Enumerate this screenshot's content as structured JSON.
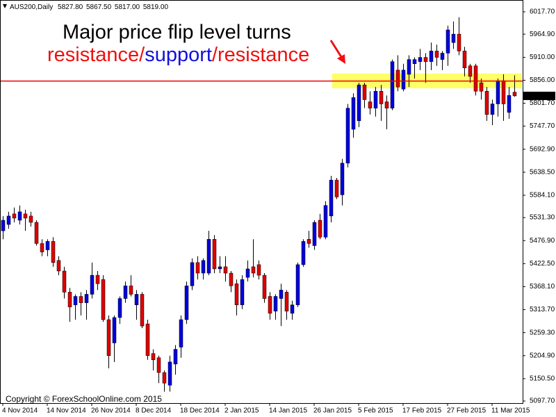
{
  "chart_data": {
    "type": "candlestick",
    "title": "AUS200,Daily",
    "quote": [
      "5827.80",
      "5867.50",
      "5817.00",
      "5819.00"
    ],
    "annotation": {
      "line1": {
        "text": "Major price flip level turns",
        "color": "#ee1111"
      },
      "line2": [
        {
          "text": "resistance/",
          "color": "#ee1111"
        },
        {
          "text": "support",
          "color": "#1111dd"
        },
        {
          "text": "/resistance",
          "color": "#ee1111"
        }
      ]
    },
    "copyright": "Copyright © ForexSchoolOnline.com 2015",
    "categories": [
      "4 Nov 2014",
      null,
      null,
      null,
      null,
      null,
      null,
      null,
      "14 Nov 2014",
      null,
      null,
      null,
      null,
      null,
      null,
      null,
      "26 Nov 2014",
      null,
      null,
      null,
      null,
      null,
      null,
      null,
      "8 Dec 2014",
      null,
      null,
      null,
      null,
      null,
      null,
      null,
      "18 Dec 2014",
      null,
      null,
      null,
      null,
      null,
      null,
      null,
      "2 Jan 2015",
      null,
      null,
      null,
      null,
      null,
      null,
      null,
      "14 Jan 2015",
      null,
      null,
      null,
      null,
      null,
      null,
      null,
      "26 Jan 2015",
      null,
      null,
      null,
      null,
      null,
      null,
      null,
      "5 Feb 2015",
      null,
      null,
      null,
      null,
      null,
      null,
      null,
      "17 Feb 2015",
      null,
      null,
      null,
      null,
      null,
      null,
      null,
      "27 Feb 2015",
      null,
      null,
      null,
      null,
      null,
      null,
      null,
      "11 Mar 2015",
      null,
      null,
      null,
      null
    ],
    "open": [
      5500,
      5515,
      5540,
      5525,
      5540,
      5535,
      5520,
      5470,
      5455,
      5475,
      5430,
      5405,
      5355,
      5325,
      5345,
      5330,
      5350,
      5395,
      5385,
      5290,
      5235,
      5295,
      5340,
      5370,
      5325,
      5350,
      5280,
      5210,
      5200,
      5165,
      5135,
      5185,
      5225,
      5290,
      5370,
      5425,
      5400,
      5400,
      5480,
      5410,
      5415,
      5400,
      5375,
      5325,
      5390,
      5415,
      5420,
      5395,
      5345,
      5310,
      5340,
      5355,
      5305,
      5325,
      5420,
      5480,
      5465,
      5525,
      5485,
      5535,
      5620,
      5585,
      5660,
      5740,
      5760,
      5845,
      5805,
      5790,
      5830,
      5805,
      5790,
      5880,
      5835,
      5870,
      5895,
      5900,
      5910,
      5900,
      5925,
      5905,
      5920,
      5945,
      5965,
      5925,
      5890,
      5890,
      5850,
      5830,
      5775,
      5800,
      5855,
      5780,
      5827.8
    ],
    "high": [
      5535,
      5545,
      5555,
      5560,
      5550,
      5545,
      5525,
      5480,
      5480,
      5485,
      5440,
      5415,
      5365,
      5350,
      5355,
      5360,
      5425,
      5405,
      5395,
      5300,
      5300,
      5345,
      5380,
      5395,
      5360,
      5355,
      5290,
      5220,
      5205,
      5170,
      5205,
      5230,
      5300,
      5380,
      5435,
      5440,
      5435,
      5500,
      5490,
      5440,
      5440,
      5405,
      5385,
      5395,
      5430,
      5480,
      5430,
      5400,
      5355,
      5350,
      5375,
      5360,
      5335,
      5425,
      5480,
      5500,
      5525,
      5540,
      5570,
      5630,
      5625,
      5670,
      5800,
      5825,
      5850,
      5850,
      5830,
      5840,
      5845,
      5820,
      5905,
      5915,
      5895,
      5915,
      5910,
      5930,
      5920,
      5945,
      5940,
      5925,
      5985,
      5995,
      6005,
      5935,
      5895,
      5895,
      5860,
      5840,
      5810,
      5860,
      5870,
      5840,
      5867.5
    ],
    "low": [
      5480,
      5505,
      5520,
      5515,
      5500,
      5510,
      5465,
      5440,
      5440,
      5415,
      5395,
      5340,
      5285,
      5290,
      5300,
      5290,
      5340,
      5360,
      5285,
      5175,
      5190,
      5280,
      5330,
      5345,
      5290,
      5270,
      5195,
      5170,
      5140,
      5120,
      5120,
      5160,
      5200,
      5280,
      5360,
      5385,
      5385,
      5395,
      5400,
      5400,
      5380,
      5355,
      5300,
      5315,
      5380,
      5390,
      5385,
      5330,
      5290,
      5290,
      5275,
      5290,
      5290,
      5320,
      5415,
      5460,
      5455,
      5480,
      5480,
      5520,
      5575,
      5560,
      5650,
      5720,
      5745,
      5790,
      5775,
      5770,
      5760,
      5740,
      5785,
      5830,
      5830,
      5840,
      5860,
      5880,
      5850,
      5880,
      5890,
      5880,
      5890,
      5930,
      5915,
      5865,
      5850,
      5820,
      5810,
      5760,
      5750,
      5770,
      5760,
      5765,
      5817
    ],
    "close": [
      5525,
      5535,
      5530,
      5545,
      5530,
      5520,
      5470,
      5450,
      5475,
      5425,
      5405,
      5355,
      5320,
      5345,
      5330,
      5350,
      5395,
      5375,
      5290,
      5205,
      5295,
      5340,
      5370,
      5350,
      5350,
      5275,
      5205,
      5195,
      5165,
      5140,
      5190,
      5220,
      5290,
      5370,
      5425,
      5400,
      5430,
      5480,
      5410,
      5415,
      5400,
      5370,
      5325,
      5385,
      5410,
      5400,
      5395,
      5340,
      5305,
      5345,
      5360,
      5310,
      5325,
      5420,
      5475,
      5470,
      5520,
      5485,
      5560,
      5620,
      5580,
      5660,
      5790,
      5815,
      5845,
      5810,
      5790,
      5830,
      5800,
      5790,
      5900,
      5840,
      5880,
      5905,
      5905,
      5910,
      5900,
      5925,
      5910,
      5920,
      5975,
      5965,
      5925,
      5885,
      5865,
      5830,
      5830,
      5775,
      5800,
      5855,
      5800,
      5820,
      5819
    ],
    "up_color": "#0000dd",
    "down_color": "#dd0000",
    "ylim": [
      5092.8,
      6040.7
    ],
    "yticks": [
      {
        "value": 6017.7,
        "label": "6017.70"
      },
      {
        "value": 5964.9,
        "label": "5964.90"
      },
      {
        "value": 5910,
        "label": "5910.00"
      },
      {
        "value": 5856,
        "label": "5856.00"
      },
      {
        "value": 5801.7,
        "label": "5801.70"
      },
      {
        "value": 5747.7,
        "label": "5747.70"
      },
      {
        "value": 5692.9,
        "label": "5692.90"
      },
      {
        "value": 5638.5,
        "label": "5638.50"
      },
      {
        "value": 5584.1,
        "label": "5584.10"
      },
      {
        "value": 5531.3,
        "label": "5531.30"
      },
      {
        "value": 5476.9,
        "label": "5476.90"
      },
      {
        "value": 5422.5,
        "label": "5422.50"
      },
      {
        "value": 5368.1,
        "label": "5368.10"
      },
      {
        "value": 5313.7,
        "label": "5313.70"
      },
      {
        "value": 5259.3,
        "label": "5259.30"
      },
      {
        "value": 5204.9,
        "label": "5204.90"
      },
      {
        "value": 5150.5,
        "label": "5150.50"
      },
      {
        "value": 5097.7,
        "label": "5097.70"
      }
    ],
    "last_price": {
      "value": 5819,
      "label": "5819.00"
    },
    "level": {
      "value": 5854,
      "color": "#ee0000"
    },
    "zone": {
      "from": 59,
      "low": 5837,
      "high": 5872,
      "color": "#ffff66"
    }
  }
}
